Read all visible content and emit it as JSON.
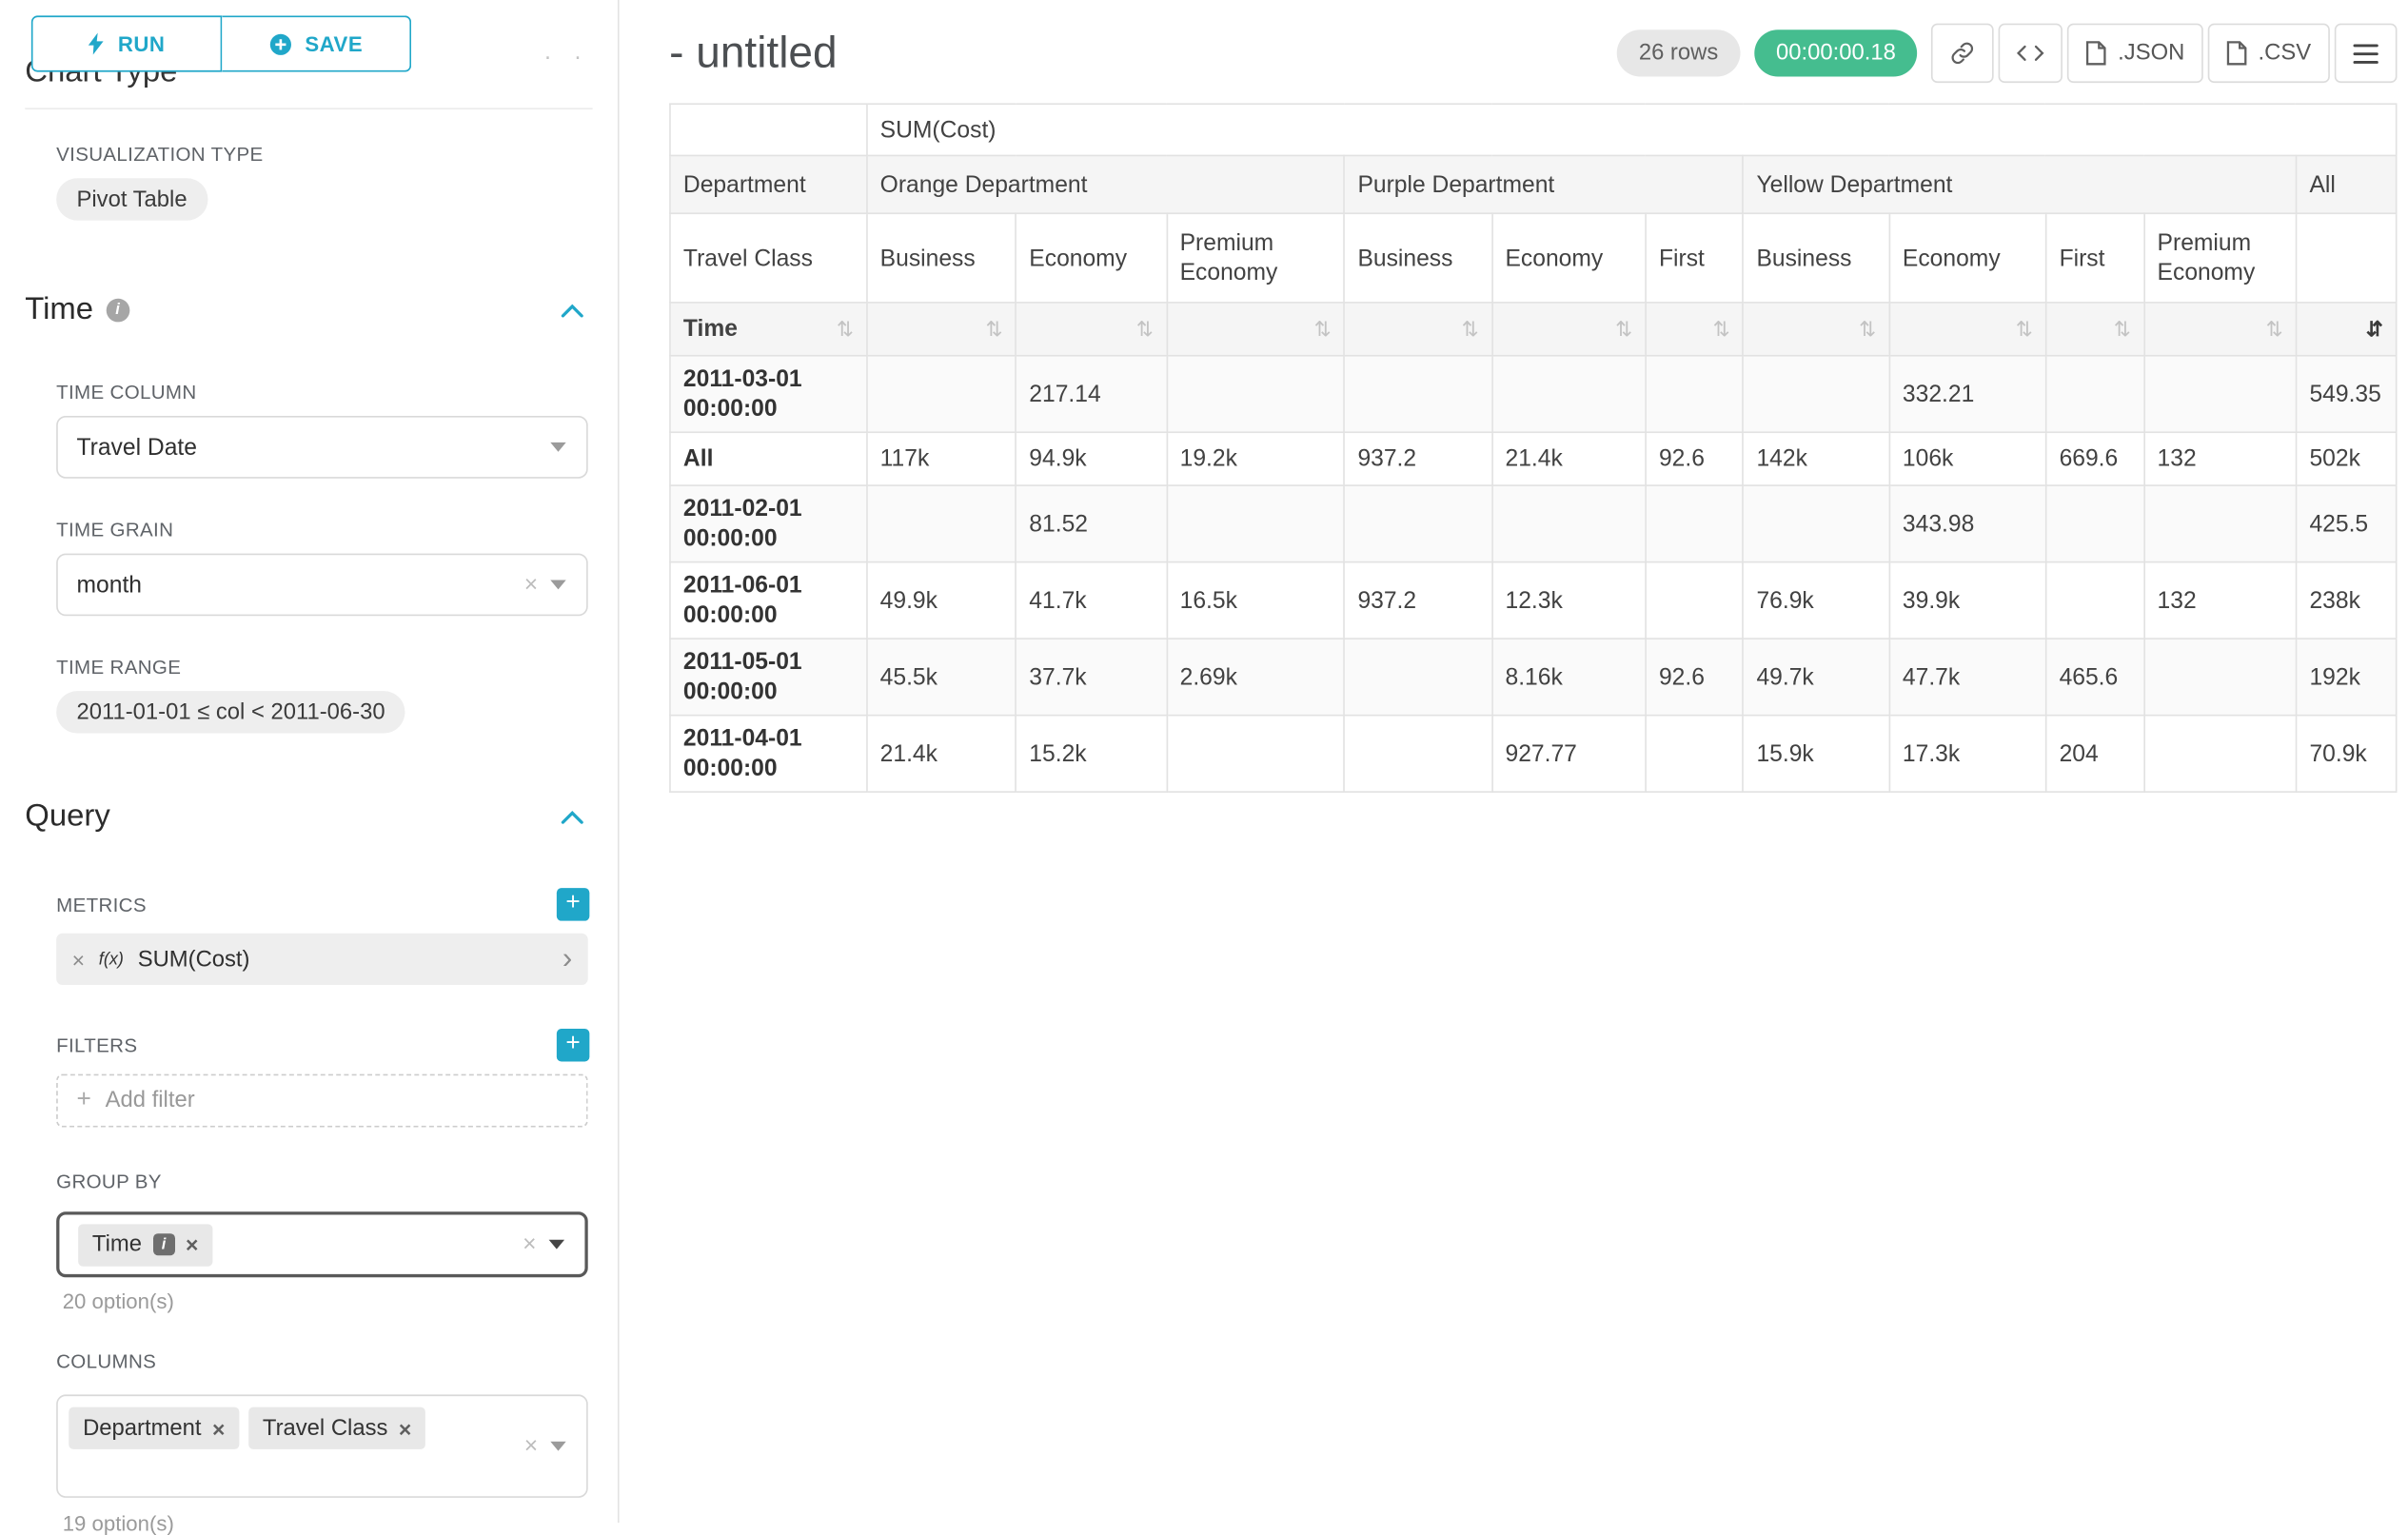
{
  "colors": {
    "accent": "#20a7c9",
    "timer_green": "#45bd8f",
    "badge_gray": "#e7e7e7"
  },
  "sidebar": {
    "run_label": "RUN",
    "save_label": "SAVE",
    "chart_type_heading": "Chart Type",
    "visualization": {
      "label": "VISUALIZATION TYPE",
      "value": "Pivot Table"
    },
    "time": {
      "heading": "Time",
      "column_label": "TIME COLUMN",
      "column_value": "Travel Date",
      "grain_label": "TIME GRAIN",
      "grain_value": "month",
      "range_label": "TIME RANGE",
      "range_value": "2011-01-01 ≤ col < 2011-06-30"
    },
    "query": {
      "heading": "Query",
      "metrics_label": "METRICS",
      "metric": {
        "fx": "f(x)",
        "name": "SUM(Cost)"
      },
      "filters_label": "FILTERS",
      "add_filter_label": "Add filter",
      "group_by_label": "GROUP BY",
      "group_by_pills": [
        "Time"
      ],
      "group_by_options": "20 option(s)",
      "columns_label": "COLUMNS",
      "columns_pills": [
        "Department",
        "Travel Class"
      ],
      "columns_options": "19 option(s)"
    }
  },
  "header": {
    "title": "- untitled",
    "rows_badge": "26 rows",
    "timer_badge": "00:00:00.18",
    "buttons": {
      "json": ".JSON",
      "csv": ".CSV"
    }
  },
  "icons": {
    "run": "bolt-icon",
    "save": "plus-circle-icon",
    "section_info": "info-icon",
    "section_collapse": "chevron-up-icon",
    "select_caret": "caret-down-icon",
    "clear": "close-icon",
    "metric_function": "function-icon",
    "metric_expand": "chevron-right-icon",
    "share": "link-icon",
    "view_query": "code-icon",
    "export": "file-icon",
    "menu": "hamburger-icon",
    "sort": "sort-icon"
  },
  "pivot": {
    "metric_header": "SUM(Cost)",
    "row_dim_label": "Department",
    "col_dim_label": "Travel Class",
    "time_label": "Time",
    "all_label": "All",
    "sort_icon": "⇅",
    "sort_icon_active": "⇵",
    "groups": [
      {
        "name": "Orange Department",
        "columns": [
          "Business",
          "Economy",
          "Premium Economy"
        ]
      },
      {
        "name": "Purple Department",
        "columns": [
          "Business",
          "Economy",
          "First"
        ]
      },
      {
        "name": "Yellow Department",
        "columns": [
          "Business",
          "Economy",
          "First",
          "Premium Economy"
        ]
      }
    ],
    "rows": [
      {
        "label": "2011-03-01 00:00:00",
        "values": [
          "",
          "217.14",
          "",
          "",
          "",
          "",
          "",
          "332.21",
          "",
          "",
          "549.35"
        ]
      },
      {
        "label": "All",
        "values": [
          "117k",
          "94.9k",
          "19.2k",
          "937.2",
          "21.4k",
          "92.6",
          "142k",
          "106k",
          "669.6",
          "132",
          "502k"
        ]
      },
      {
        "label": "2011-02-01 00:00:00",
        "values": [
          "",
          "81.52",
          "",
          "",
          "",
          "",
          "",
          "343.98",
          "",
          "",
          "425.5"
        ]
      },
      {
        "label": "2011-06-01 00:00:00",
        "values": [
          "49.9k",
          "41.7k",
          "16.5k",
          "937.2",
          "12.3k",
          "",
          "76.9k",
          "39.9k",
          "",
          "132",
          "238k"
        ]
      },
      {
        "label": "2011-05-01 00:00:00",
        "values": [
          "45.5k",
          "37.7k",
          "2.69k",
          "",
          "8.16k",
          "92.6",
          "49.7k",
          "47.7k",
          "465.6",
          "",
          "192k"
        ]
      },
      {
        "label": "2011-04-01 00:00:00",
        "values": [
          "21.4k",
          "15.2k",
          "",
          "",
          "927.77",
          "",
          "15.9k",
          "17.3k",
          "204",
          "",
          "70.9k"
        ]
      }
    ]
  }
}
